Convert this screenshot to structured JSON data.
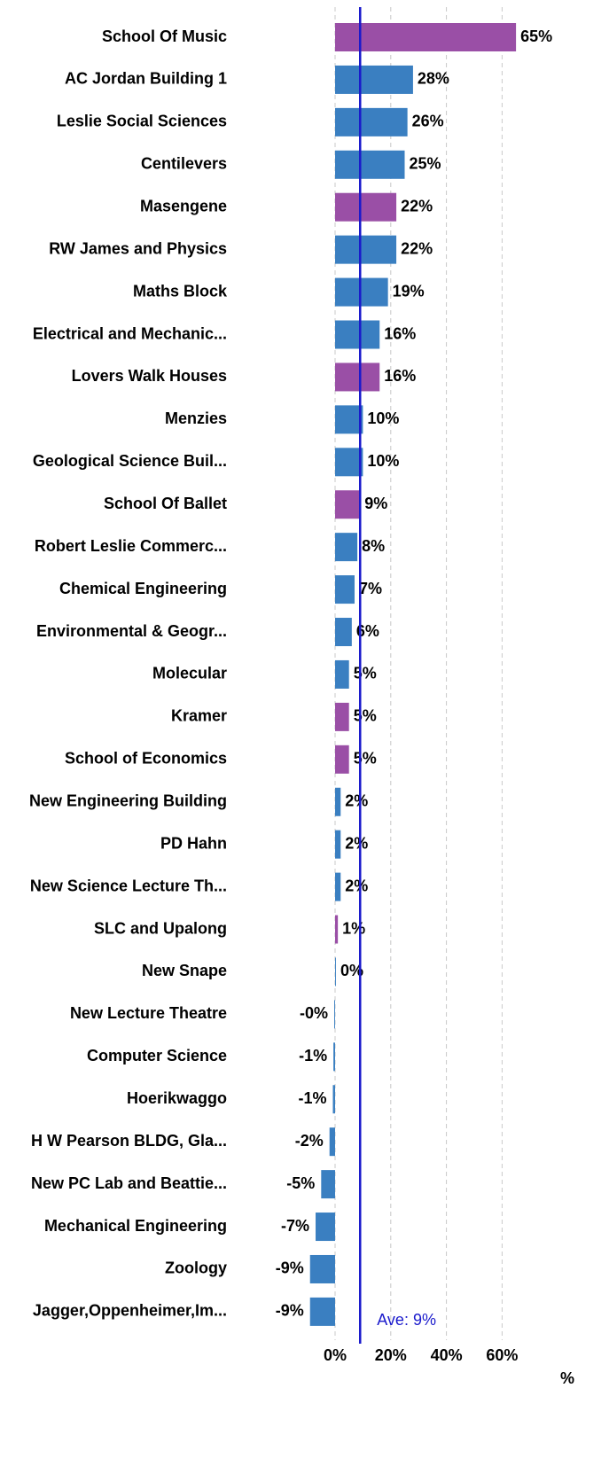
{
  "chart_data": {
    "type": "bar",
    "orientation": "horizontal",
    "categories": [
      "School Of Music",
      "AC Jordan Building 1",
      "Leslie Social Sciences",
      "Centilevers",
      "Masengene",
      "RW James and Physics",
      "Maths Block",
      "Electrical and Mechanic...",
      "Lovers Walk Houses",
      "Menzies",
      "Geological Science Buil...",
      "School Of Ballet",
      "Robert Leslie Commerc...",
      "Chemical Engineering",
      "Environmental & Geogr...",
      "Molecular",
      "Kramer",
      "School of Economics",
      "New Engineering Building",
      "PD Hahn",
      "New Science Lecture Th...",
      "SLC and Upalong",
      "New Snape",
      "New Lecture Theatre",
      "Computer Science",
      "Hoerikwaggo",
      "H W Pearson BLDG, Gla...",
      "New PC Lab and Beattie...",
      "Mechanical Engineering",
      "Zoology",
      "Jagger,Oppenheimer,Im..."
    ],
    "values": [
      65,
      28,
      26,
      25,
      22,
      22,
      19,
      16,
      16,
      10,
      10,
      9,
      8,
      7,
      6,
      5,
      5,
      5,
      2,
      2,
      2,
      1,
      0.3,
      -0.3,
      -0.6,
      -0.8,
      -2,
      -5,
      -7,
      -9,
      -9
    ],
    "value_labels": [
      "65%",
      "28%",
      "26%",
      "25%",
      "22%",
      "22%",
      "19%",
      "16%",
      "16%",
      "10%",
      "10%",
      "9%",
      "8%",
      "7%",
      "6%",
      "5%",
      "5%",
      "5%",
      "2%",
      "2%",
      "2%",
      "1%",
      "0%",
      "-0%",
      "-1%",
      "-1%",
      "-2%",
      "-5%",
      "-7%",
      "-9%",
      "-9%"
    ],
    "colors": [
      "#9a4fa6",
      "#3a7fc1",
      "#3a7fc1",
      "#3a7fc1",
      "#9a4fa6",
      "#3a7fc1",
      "#3a7fc1",
      "#3a7fc1",
      "#9a4fa6",
      "#3a7fc1",
      "#3a7fc1",
      "#9a4fa6",
      "#3a7fc1",
      "#3a7fc1",
      "#3a7fc1",
      "#3a7fc1",
      "#9a4fa6",
      "#9a4fa6",
      "#3a7fc1",
      "#3a7fc1",
      "#3a7fc1",
      "#9a4fa6",
      "#3a7fc1",
      "#3a7fc1",
      "#3a7fc1",
      "#3a7fc1",
      "#3a7fc1",
      "#3a7fc1",
      "#3a7fc1",
      "#3a7fc1",
      "#3a7fc1"
    ],
    "xlim": [
      -10,
      80
    ],
    "xticks": [
      {
        "value": 0,
        "label": "0%"
      },
      {
        "value": 20,
        "label": "20%"
      },
      {
        "value": 40,
        "label": "40%"
      },
      {
        "value": 60,
        "label": "60%"
      }
    ],
    "x_label": "%",
    "grid": true,
    "average": 9,
    "average_label": "Ave: 9%",
    "average_color": "#1a1acc"
  }
}
